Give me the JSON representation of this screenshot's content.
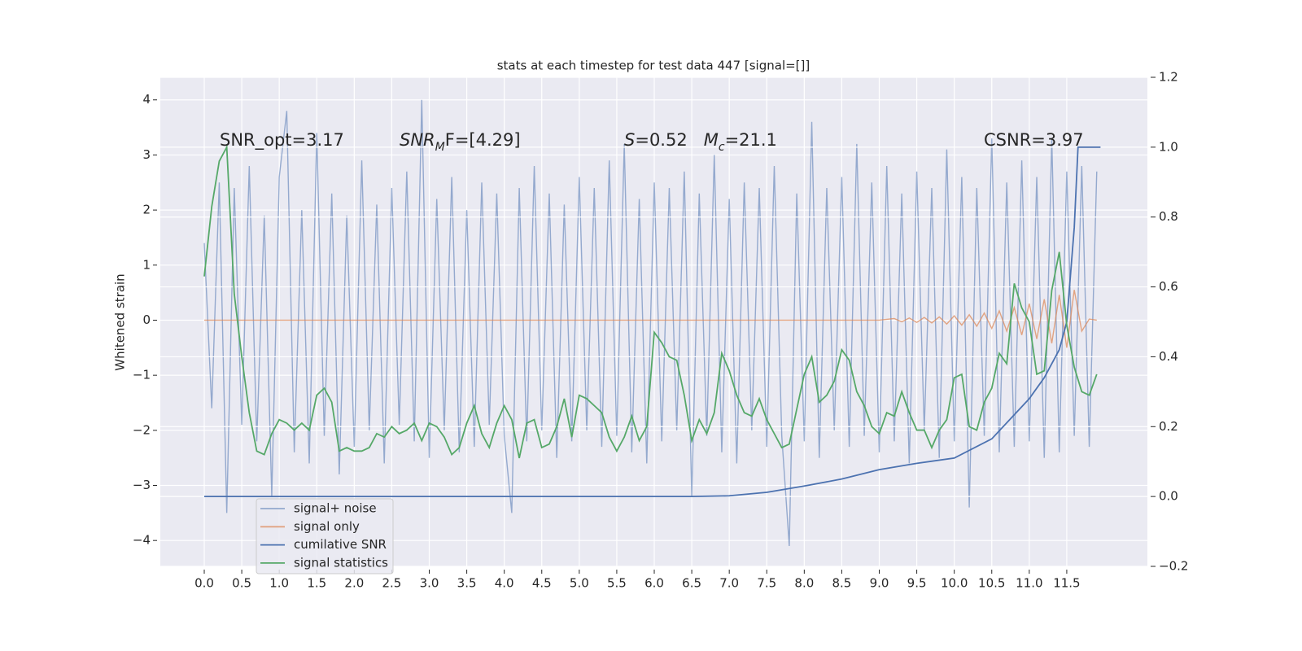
{
  "chart_data": {
    "type": "line",
    "title": "stats at each timestep for test data 447 [signal=[]]",
    "ylabel": "Whitened strain",
    "annotations": [
      [
        "SNR_opt=3.17"
      ],
      [
        "SNR",
        "M",
        "F=[4.29]"
      ],
      [
        "S",
        "=0.52   ",
        "M",
        "c",
        "=21.1"
      ],
      [
        "CSNR=3.97"
      ]
    ],
    "grid": true,
    "legend": "lower left",
    "xlim": [
      -0.586,
      12.575
    ],
    "ylim": [
      -4.47,
      4.41
    ],
    "y2lim": [
      -0.2,
      1.2
    ],
    "xticks": [
      {
        "value": 0,
        "label": "0.0"
      },
      {
        "value": 0.5,
        "label": "0.5"
      },
      {
        "value": 1,
        "label": "1.0"
      },
      {
        "value": 1.5,
        "label": "1.5"
      },
      {
        "value": 2,
        "label": "2.0"
      },
      {
        "value": 2.5,
        "label": "2.5"
      },
      {
        "value": 3,
        "label": "3.0"
      },
      {
        "value": 3.5,
        "label": "3.5"
      },
      {
        "value": 4,
        "label": "4.0"
      },
      {
        "value": 4.5,
        "label": "4.5"
      },
      {
        "value": 5,
        "label": "5.0"
      },
      {
        "value": 5.5,
        "label": "5.5"
      },
      {
        "value": 6,
        "label": "6.0"
      },
      {
        "value": 6.5,
        "label": "6.5"
      },
      {
        "value": 7,
        "label": "7.0"
      },
      {
        "value": 7.5,
        "label": "7.5"
      },
      {
        "value": 8,
        "label": "8.0"
      },
      {
        "value": 8.5,
        "label": "8.5"
      },
      {
        "value": 9,
        "label": "9.0"
      },
      {
        "value": 9.5,
        "label": "9.5"
      },
      {
        "value": 10,
        "label": "10.0"
      },
      {
        "value": 10.5,
        "label": "10.5"
      },
      {
        "value": 11,
        "label": "11.0"
      },
      {
        "value": 11.5,
        "label": "11.5"
      }
    ],
    "yticks": [
      {
        "value": -4,
        "label": "−4"
      },
      {
        "value": -3,
        "label": "−3"
      },
      {
        "value": -2,
        "label": "−2"
      },
      {
        "value": -1,
        "label": "−1"
      },
      0,
      1,
      2,
      3,
      4
    ],
    "y2ticks": [
      {
        "value": -0.2,
        "label": "−0.2"
      },
      {
        "value": 0,
        "label": "0.0"
      },
      {
        "value": 0.2,
        "label": "0.2"
      },
      {
        "value": 0.4,
        "label": "0.4"
      },
      {
        "value": 0.6,
        "label": "0.6"
      },
      {
        "value": 0.8,
        "label": "0.8"
      },
      {
        "value": 1,
        "label": "1.0"
      },
      {
        "value": 1.2,
        "label": "1.2"
      }
    ],
    "x": [
      0,
      0.1,
      0.2,
      0.3,
      0.4,
      0.5,
      0.6,
      0.7,
      0.8,
      0.9,
      1,
      1.1,
      1.2,
      1.3,
      1.4,
      1.5,
      1.6,
      1.7,
      1.8,
      1.9,
      2,
      2.1,
      2.2,
      2.3,
      2.4,
      2.5,
      2.6,
      2.7,
      2.8,
      2.9,
      3,
      3.1,
      3.2,
      3.3,
      3.4,
      3.5,
      3.6,
      3.7,
      3.8,
      3.9,
      4,
      4.1,
      4.2,
      4.3,
      4.4,
      4.5,
      4.6,
      4.7,
      4.8,
      4.9,
      5,
      5.1,
      5.2,
      5.3,
      5.4,
      5.5,
      5.6,
      5.7,
      5.8,
      5.9,
      6,
      6.1,
      6.2,
      6.3,
      6.4,
      6.5,
      6.6,
      6.7,
      6.8,
      6.9,
      7,
      7.1,
      7.2,
      7.3,
      7.4,
      7.5,
      7.6,
      7.7,
      7.8,
      7.9,
      8,
      8.1,
      8.2,
      8.3,
      8.4,
      8.5,
      8.6,
      8.7,
      8.8,
      8.9,
      9,
      9.1,
      9.2,
      9.3,
      9.4,
      9.5,
      9.6,
      9.7,
      9.8,
      9.9,
      10,
      10.1,
      10.2,
      10.3,
      10.4,
      10.5,
      10.6,
      10.7,
      10.8,
      10.9,
      11,
      11.1,
      11.2,
      11.3,
      11.4,
      11.5,
      11.6,
      11.7,
      11.8,
      11.9
    ],
    "series": [
      {
        "name": "signal+ noise",
        "color": "#4c72b0",
        "opacity": 0.55,
        "values": [
          1.4,
          -1.6,
          2.5,
          -3.5,
          2.4,
          -1.9,
          2.8,
          -2.2,
          1.9,
          -3.2,
          2.6,
          3.8,
          -2.4,
          2.0,
          -2.6,
          3.4,
          -2.1,
          2.3,
          -2.8,
          1.9,
          -2.3,
          2.9,
          -2.0,
          2.1,
          -2.6,
          2.4,
          -1.9,
          2.7,
          -2.2,
          4.0,
          -2.5,
          2.2,
          -2.0,
          2.6,
          -2.4,
          2.0,
          -2.3,
          2.5,
          -1.9,
          2.3,
          -2.1,
          -3.5,
          2.4,
          -2.2,
          2.8,
          -2.0,
          2.3,
          -2.5,
          2.1,
          -2.2,
          2.6,
          -2.0,
          2.4,
          -2.3,
          2.9,
          -2.1,
          3.2,
          -2.4,
          2.2,
          -2.6,
          2.5,
          -2.2,
          2.4,
          -2.0,
          2.7,
          -3.2,
          2.3,
          -2.1,
          3.0,
          -2.4,
          2.2,
          -2.6,
          2.5,
          -2.0,
          2.4,
          -2.3,
          2.8,
          -2.1,
          -4.1,
          2.3,
          -2.2,
          3.6,
          -2.5,
          2.4,
          -2.0,
          2.6,
          -2.3,
          3.2,
          -2.1,
          2.5,
          -2.4,
          2.8,
          -2.2,
          2.3,
          -2.6,
          2.7,
          -2.0,
          2.4,
          -2.5,
          3.1,
          -2.2,
          2.6,
          -3.4,
          2.4,
          -2.1,
          3.3,
          -2.4,
          2.5,
          -2.3,
          2.9,
          -2.2,
          2.6,
          -2.5,
          3.3,
          -2.4,
          2.7,
          -2.1,
          2.8,
          -2.3,
          2.7
        ]
      },
      {
        "name": "signal only",
        "color": "#dd8452",
        "opacity": 0.7,
        "x": [
          0,
          9.0,
          9.2,
          9.3,
          9.4,
          9.5,
          9.6,
          9.7,
          9.8,
          9.9,
          10.0,
          10.1,
          10.2,
          10.3,
          10.4,
          10.5,
          10.6,
          10.7,
          10.8,
          10.9,
          11.0,
          11.1,
          11.2,
          11.3,
          11.4,
          11.5,
          11.6,
          11.7,
          11.8,
          11.9
        ],
        "values": [
          0,
          0,
          0.03,
          -0.03,
          0.04,
          -0.04,
          0.05,
          -0.05,
          0.06,
          -0.07,
          0.08,
          -0.09,
          0.1,
          -0.11,
          0.13,
          -0.15,
          0.17,
          -0.2,
          0.23,
          -0.27,
          0.3,
          -0.34,
          0.38,
          -0.42,
          0.46,
          -0.5,
          0.55,
          -0.2,
          0.02,
          0
        ]
      },
      {
        "name": "cumilative SNR",
        "color": "#4c72b0",
        "axis": "y2",
        "x": [
          0,
          6,
          6.5,
          7,
          7.5,
          8,
          8.5,
          9,
          9.5,
          10,
          10.5,
          11,
          11.2,
          11.4,
          11.5,
          11.6,
          11.65,
          11.95
        ],
        "values": [
          0,
          0,
          0,
          0.002,
          0.012,
          0.03,
          0.05,
          0.077,
          0.095,
          0.11,
          0.165,
          0.28,
          0.34,
          0.42,
          0.5,
          0.77,
          1.0,
          1.0
        ]
      },
      {
        "name": "signal statistics",
        "color": "#55a868",
        "axis": "y2",
        "values": [
          0.63,
          0.83,
          0.96,
          1.0,
          0.58,
          0.4,
          0.24,
          0.13,
          0.12,
          0.18,
          0.22,
          0.21,
          0.19,
          0.21,
          0.19,
          0.29,
          0.31,
          0.27,
          0.13,
          0.14,
          0.13,
          0.13,
          0.14,
          0.18,
          0.17,
          0.2,
          0.18,
          0.19,
          0.21,
          0.16,
          0.21,
          0.2,
          0.17,
          0.12,
          0.14,
          0.21,
          0.26,
          0.18,
          0.14,
          0.21,
          0.26,
          0.22,
          0.11,
          0.21,
          0.22,
          0.14,
          0.15,
          0.2,
          0.28,
          0.17,
          0.29,
          0.28,
          0.26,
          0.24,
          0.17,
          0.13,
          0.17,
          0.23,
          0.16,
          0.2,
          0.47,
          0.44,
          0.4,
          0.39,
          0.29,
          0.16,
          0.22,
          0.18,
          0.24,
          0.41,
          0.36,
          0.29,
          0.24,
          0.23,
          0.28,
          0.22,
          0.18,
          0.14,
          0.15,
          0.25,
          0.35,
          0.4,
          0.27,
          0.29,
          0.33,
          0.42,
          0.39,
          0.3,
          0.26,
          0.2,
          0.18,
          0.24,
          0.23,
          0.3,
          0.24,
          0.19,
          0.19,
          0.14,
          0.19,
          0.22,
          0.34,
          0.35,
          0.2,
          0.19,
          0.27,
          0.31,
          0.41,
          0.38,
          0.61,
          0.54,
          0.5,
          0.35,
          0.36,
          0.59,
          0.7,
          0.49,
          0.37,
          0.3,
          0.29,
          0.35
        ]
      }
    ]
  }
}
